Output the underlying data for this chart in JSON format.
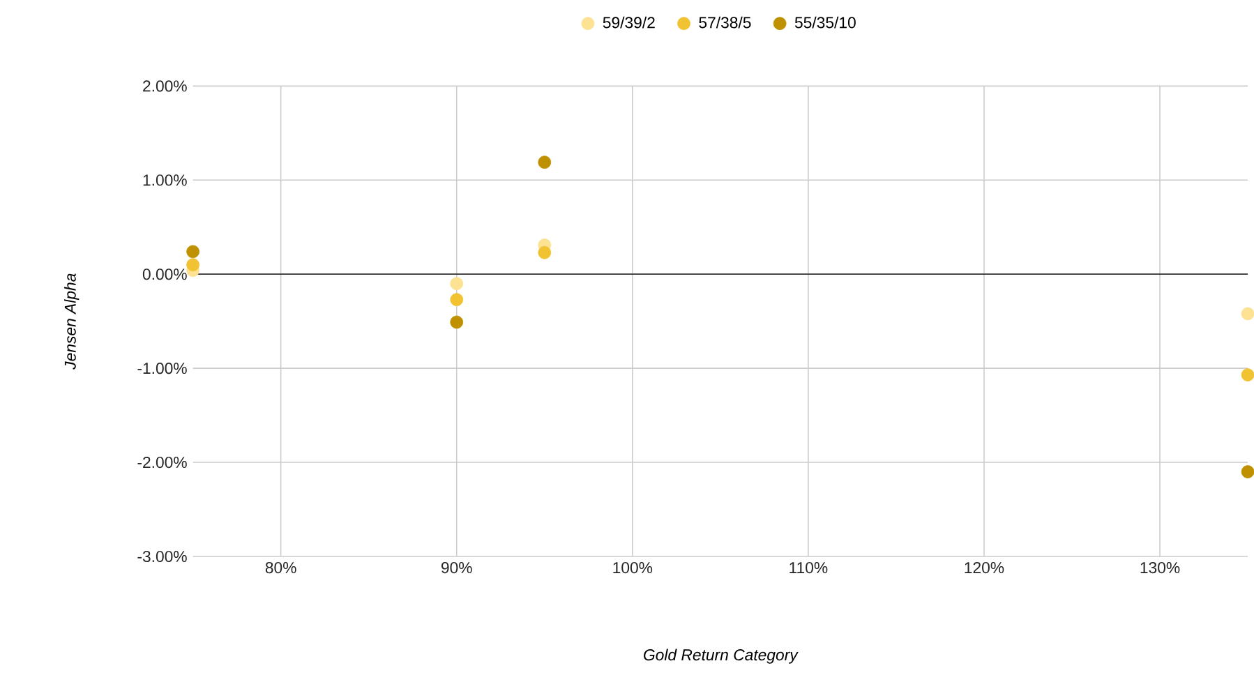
{
  "chart_data": {
    "type": "scatter",
    "xlabel": "Gold Return Category",
    "ylabel": "Jensen Alpha",
    "x": [
      75,
      90,
      95,
      135
    ],
    "series": [
      {
        "name": "59/39/2",
        "color": "#fde293",
        "values": [
          0.04,
          -0.1,
          0.31,
          -0.42
        ]
      },
      {
        "name": "57/38/5",
        "color": "#f1c232",
        "values": [
          0.1,
          -0.27,
          0.23,
          -1.07
        ]
      },
      {
        "name": "55/35/10",
        "color": "#bf9000",
        "values": [
          0.24,
          -0.51,
          1.19,
          -2.1
        ]
      }
    ],
    "xlim": [
      75,
      135
    ],
    "xticks": [
      {
        "value": 80,
        "label": "80%"
      },
      {
        "value": 90,
        "label": "90%"
      },
      {
        "value": 100,
        "label": "100%"
      },
      {
        "value": 110,
        "label": "110%"
      },
      {
        "value": 120,
        "label": "120%"
      },
      {
        "value": 130,
        "label": "130%"
      }
    ],
    "ylim": [
      -3,
      2
    ],
    "yticks": [
      {
        "value": -3,
        "label": "-3.00%"
      },
      {
        "value": -2,
        "label": "-2.00%"
      },
      {
        "value": -1,
        "label": "-1.00%"
      },
      {
        "value": 0,
        "label": "0.00%"
      },
      {
        "value": 1,
        "label": "1.00%"
      },
      {
        "value": 2,
        "label": "2.00%"
      }
    ],
    "ref_lines": [
      {
        "axis": "y",
        "value": 0,
        "color": "#333333"
      }
    ],
    "grid": true,
    "legend": "top"
  }
}
